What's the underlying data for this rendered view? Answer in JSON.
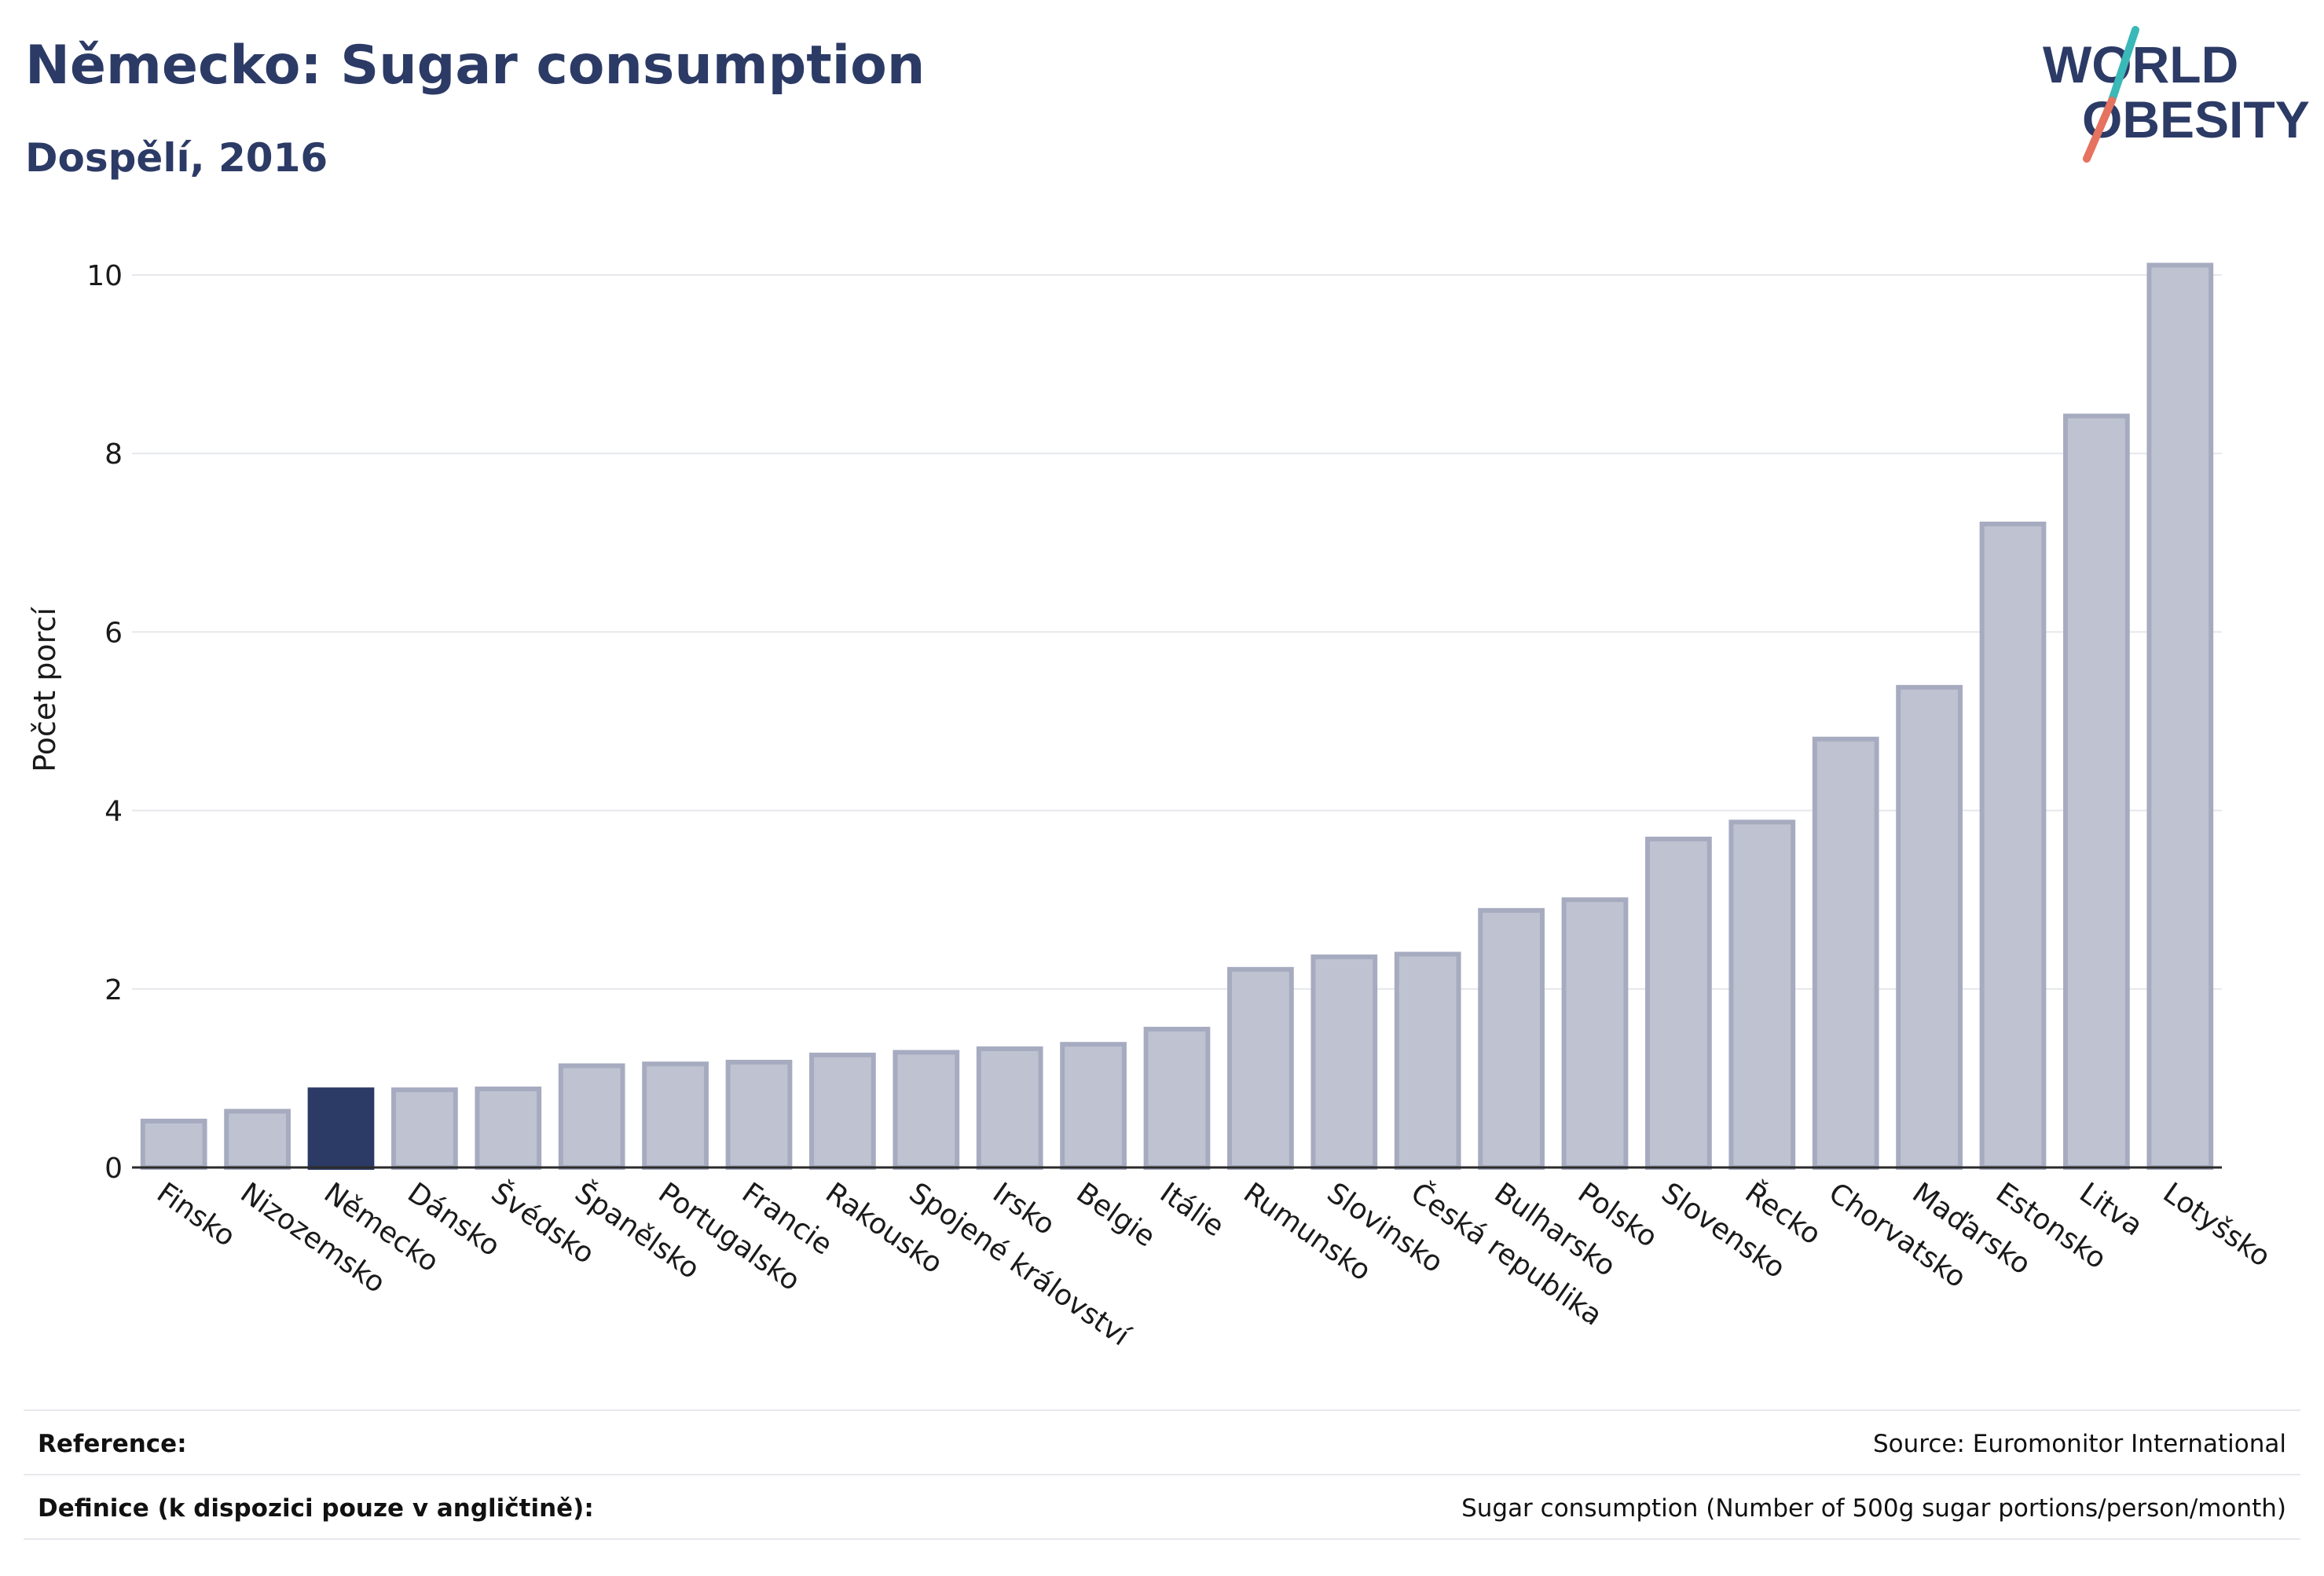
{
  "header": {
    "title": "Německo: Sugar consumption",
    "subtitle": "Dospělí, 2016"
  },
  "logo": {
    "line1": "WORLD",
    "line2": "OBESITY",
    "text_color": "#2c3a66",
    "slash_top_color": "#3bb8b8",
    "slash_bottom_color": "#e5735f"
  },
  "chart_data": {
    "type": "bar",
    "ylabel": "Počet porcí",
    "ylim": [
      0,
      10.5
    ],
    "yticks": [
      0,
      2,
      4,
      6,
      8,
      10
    ],
    "grid": true,
    "highlight": "Německo",
    "bar_color": "#bfc3d1",
    "bar_edge_color": "#a6abc0",
    "highlight_color": "#2c3a66",
    "categories": [
      "Finsko",
      "Nizozemsko",
      "Německo",
      "Dánsko",
      "Švédsko",
      "Španělsko",
      "Portugalsko",
      "Francie",
      "Rakousko",
      "Spojené království",
      "Irsko",
      "Belgie",
      "Itálie",
      "Rumunsko",
      "Slovinsko",
      "Česká republika",
      "Bulharsko",
      "Polsko",
      "Slovensko",
      "Řecko",
      "Chorvatsko",
      "Maďarsko",
      "Estonsko",
      "Litva",
      "Lotyšsko"
    ],
    "values": [
      0.52,
      0.63,
      0.87,
      0.87,
      0.88,
      1.14,
      1.16,
      1.18,
      1.26,
      1.29,
      1.33,
      1.38,
      1.55,
      2.22,
      2.36,
      2.39,
      2.88,
      3.0,
      3.68,
      3.87,
      4.8,
      5.38,
      7.21,
      8.42,
      10.11
    ]
  },
  "footer": {
    "reference_label": "Reference:",
    "reference_value": "Source: Euromonitor International",
    "definition_label": "Definice (k dispozici pouze v angličtině):",
    "definition_value": "Sugar consumption (Number of 500g sugar portions/person/month)"
  }
}
